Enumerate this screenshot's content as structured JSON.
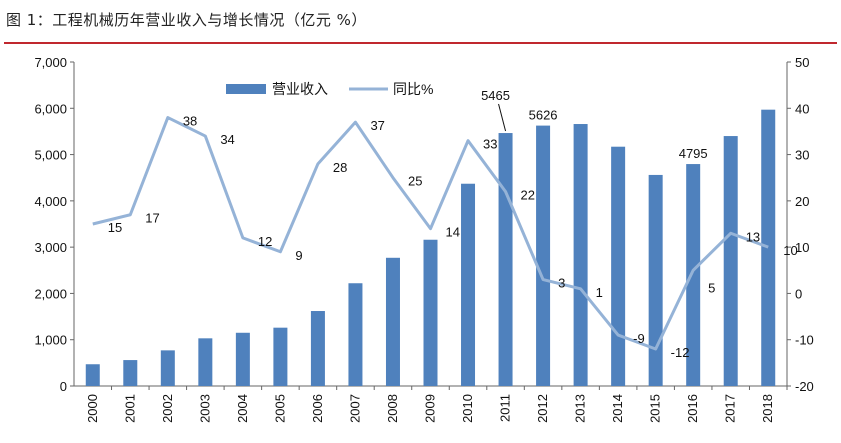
{
  "figure": {
    "title": "图 1：工程机械历年营业收入与增长情况（亿元 %）"
  },
  "colors": {
    "bar": "#4f81bd",
    "line": "#95b3d7",
    "title_rule": "#c0282e",
    "axis": "#666666"
  },
  "chart_data": {
    "type": "bar",
    "title": "",
    "categories": [
      "2000",
      "2001",
      "2002",
      "2003",
      "2004",
      "2005",
      "2006",
      "2007",
      "2008",
      "2009",
      "2010",
      "2011",
      "2012",
      "2013",
      "2014",
      "2015",
      "2016",
      "2017",
      "2018"
    ],
    "series": [
      {
        "name": "营业收入",
        "type": "bar",
        "axis": "left",
        "values": [
          470,
          560,
          770,
          1030,
          1150,
          1260,
          1620,
          2220,
          2770,
          3160,
          4370,
          5465,
          5626,
          5660,
          5170,
          4560,
          4795,
          5400,
          5970
        ]
      },
      {
        "name": "同比%",
        "type": "line",
        "axis": "right",
        "values": [
          15,
          17,
          38,
          34,
          12,
          9,
          28,
          37,
          25,
          14,
          33,
          22,
          3,
          1,
          -9,
          -12,
          5,
          13,
          10
        ]
      }
    ],
    "bar_labels": [
      {
        "index": 11,
        "text": "5465"
      },
      {
        "index": 12,
        "text": "5626"
      },
      {
        "index": 16,
        "text": "4795"
      }
    ],
    "line_labels": [
      "15",
      "17",
      "38",
      "34",
      "12",
      "9",
      "28",
      "37",
      "25",
      "14",
      "33",
      "22",
      "3",
      "1",
      "-9",
      "-12",
      "5",
      "13",
      "10"
    ],
    "y_left": {
      "min": 0,
      "max": 7000,
      "ticks": [
        "0",
        "1,000",
        "2,000",
        "3,000",
        "4,000",
        "5,000",
        "6,000",
        "7,000"
      ]
    },
    "y_right": {
      "min": -20,
      "max": 50,
      "ticks": [
        "-20",
        "-10",
        "0",
        "10",
        "20",
        "30",
        "40",
        "50"
      ]
    },
    "xlabel": "",
    "ylabel": "",
    "grid": false,
    "legend_placement": "top"
  }
}
